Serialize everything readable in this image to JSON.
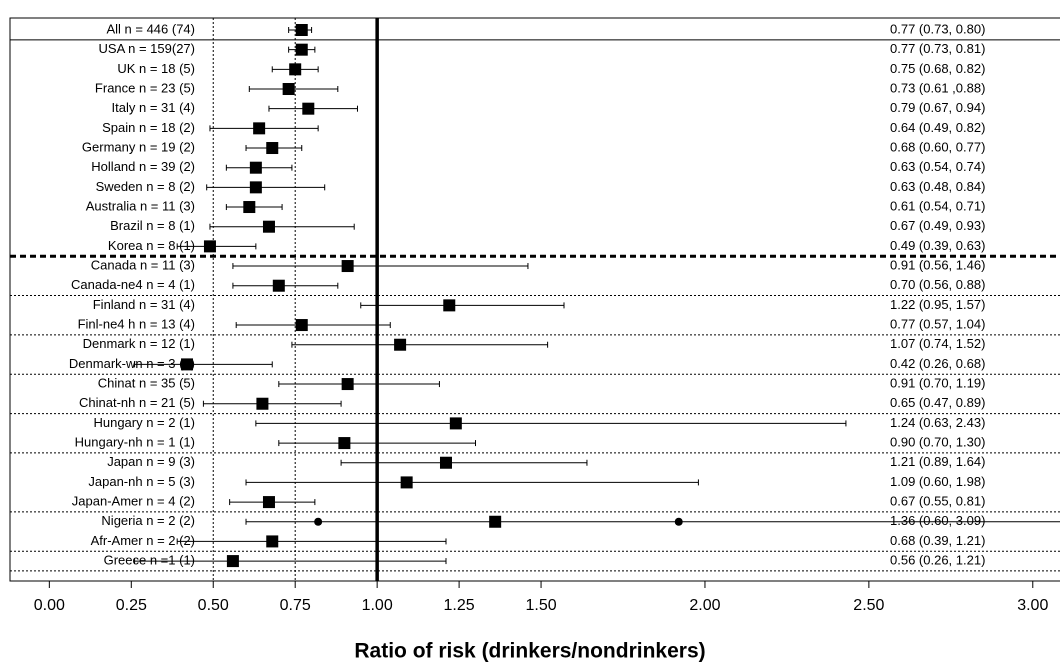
{
  "chart_data": {
    "type": "forest",
    "x_label": "Ratio of risk (drinkers/nondrinkers)",
    "categories": [
      "All n = 446 (74)",
      "USA n = 159(27)",
      "UK n = 18 (5)",
      "France n = 23 (5)",
      "Italy n = 31 (4)",
      "Spain n = 18 (2)",
      "Germany n = 19 (2)",
      "Holland n = 39 (2)",
      "Sweden n = 8 (2)",
      "Australia n = 11 (3)",
      "Brazil n = 8 (1)",
      "Korea n = 8 (1)",
      "Canada n = 11 (3)",
      "Canada-ne4 n = 4 (1)",
      "Finland n = 31 (4)",
      "Finl-ne4 h n = 13 (4)",
      "Denmark n = 12 (1)",
      "Denmark-wn n = 3 (1)",
      "Chinat n = 35 (5)",
      "Chinat-nh n = 21 (5)",
      "Hungary n = 2 (1)",
      "Hungary-nh n = 1 (1)",
      "Japan n = 9 (3)",
      "Japan-nh n = 5 (3)",
      "Japan-Amer n = 4 (2)",
      "Nigeria n = 2 (2)",
      "Afr-Amer n = 2 (2)",
      "Greece n =1 (1)"
    ],
    "values": [
      0.77,
      0.77,
      0.75,
      0.73,
      0.79,
      0.64,
      0.68,
      0.63,
      0.63,
      0.61,
      0.67,
      0.49,
      0.91,
      0.7,
      1.22,
      0.77,
      1.07,
      0.42,
      0.91,
      0.65,
      1.24,
      0.9,
      1.21,
      1.09,
      0.67,
      1.36,
      0.68,
      0.56
    ],
    "lower": [
      0.73,
      0.73,
      0.68,
      0.61,
      0.67,
      0.49,
      0.6,
      0.54,
      0.48,
      0.54,
      0.49,
      0.39,
      0.56,
      0.56,
      0.95,
      0.57,
      0.74,
      0.26,
      0.7,
      0.47,
      0.63,
      0.7,
      0.89,
      0.6,
      0.55,
      0.6,
      0.39,
      0.26
    ],
    "upper": [
      0.8,
      0.81,
      0.82,
      0.88,
      0.94,
      0.82,
      0.77,
      0.74,
      0.84,
      0.71,
      0.93,
      0.63,
      1.46,
      0.88,
      1.57,
      1.04,
      1.52,
      0.68,
      1.19,
      0.89,
      2.43,
      1.3,
      1.64,
      1.98,
      0.81,
      3.09,
      1.21,
      1.21
    ],
    "value_labels": [
      "0.77 (0.73, 0.80)",
      "0.77 (0.73, 0.81)",
      "0.75 (0.68, 0.82)",
      "0.73 (0.61 ,0.88)",
      "0.79 (0.67, 0.94)",
      "0.64 (0.49, 0.82)",
      "0.68 (0.60, 0.77)",
      "0.63 (0.54, 0.74)",
      "0.63 (0.48, 0.84)",
      "0.61 (0.54, 0.71)",
      "0.67 (0.49, 0.93)",
      "0.49 (0.39, 0.63)",
      "0.91 (0.56, 1.46)",
      "0.70 (0.56, 0.88)",
      "1.22 (0.95, 1.57)",
      "0.77 (0.57, 1.04)",
      "1.07 (0.74, 1.52)",
      "0.42 (0.26, 0.68)",
      "0.91 (0.70, 1.19)",
      "0.65 (0.47, 0.89)",
      "1.24 (0.63, 2.43)",
      "0.90 (0.70, 1.30)",
      "1.21 (0.89, 1.64)",
      "1.09 (0.60, 1.98)",
      "0.67 (0.55, 0.81)",
      "1.36 (0.60, 3.09)",
      "0.68 (0.39, 1.21)",
      "0.56 (0.26, 1.21)"
    ],
    "extra_points": [
      {
        "row": 25,
        "values": [
          0.82,
          1.92
        ]
      }
    ],
    "separators": [
      {
        "after": 0,
        "style": "solid"
      },
      {
        "after": 11,
        "style": "dashed"
      },
      {
        "after": 13,
        "style": "dotted"
      },
      {
        "after": 15,
        "style": "dotted"
      },
      {
        "after": 17,
        "style": "dotted"
      },
      {
        "after": 19,
        "style": "dotted"
      },
      {
        "after": 21,
        "style": "dotted"
      },
      {
        "after": 24,
        "style": "dotted"
      },
      {
        "after": 26,
        "style": "dotted"
      },
      {
        "after": 27,
        "style": "dotted"
      }
    ],
    "ref_lines": [
      {
        "value": 0.5,
        "style": "dotted"
      },
      {
        "value": 0.75,
        "style": "dotted"
      },
      {
        "value": 1,
        "style": "solid"
      }
    ],
    "color": "#000000",
    "xlim": [
      -0.12,
      3.08
    ],
    "xticks": [
      {
        "value": 0,
        "label": "0.00"
      },
      {
        "value": 0.25,
        "label": "0.25"
      },
      {
        "value": 0.5,
        "label": "0.50"
      },
      {
        "value": 0.75,
        "label": "0.75"
      },
      {
        "value": 1,
        "label": "1.00"
      },
      {
        "value": 1.25,
        "label": "1.25"
      },
      {
        "value": 1.5,
        "label": "1.50"
      },
      {
        "value": 2,
        "label": "2.00"
      },
      {
        "value": 2.5,
        "label": "2.50"
      },
      {
        "value": 3,
        "label": "3.00"
      }
    ]
  }
}
